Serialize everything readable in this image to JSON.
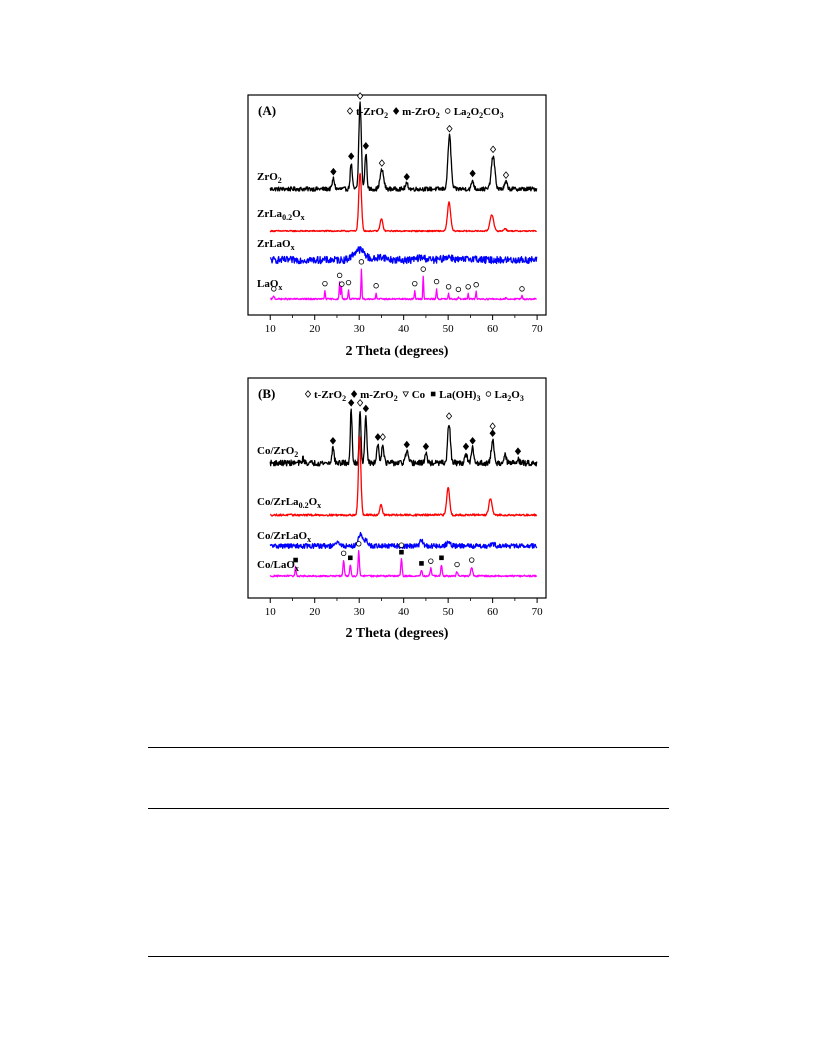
{
  "chart_data": [
    {
      "type": "line",
      "panel_label": "(A)",
      "xlabel": "2 Theta (degrees)",
      "ylabel": "",
      "xlim": [
        5,
        72
      ],
      "x_ticks": [
        "10",
        "20",
        "30",
        "40",
        "50",
        "60",
        "70"
      ],
      "grid": false,
      "legend_position": "top-right",
      "legend": [
        {
          "marker": "diamond-open",
          "text": "t-ZrO₂"
        },
        {
          "marker": "diamond-filled",
          "text": "m-ZrO₂"
        },
        {
          "marker": "circle-open",
          "text": "La₂O₂CO₃"
        }
      ],
      "series": [
        {
          "name": "ZrO₂",
          "color": "#000000",
          "noise": 0.025,
          "baseline": 0.0,
          "peaks": [
            [
              24.2,
              0.12,
              0.5
            ],
            [
              28.2,
              0.3,
              0.45
            ],
            [
              30.2,
              1.0,
              0.55
            ],
            [
              31.5,
              0.42,
              0.45
            ],
            [
              35.1,
              0.22,
              0.8
            ],
            [
              40.7,
              0.06,
              0.6
            ],
            [
              50.3,
              0.62,
              0.7
            ],
            [
              55.5,
              0.1,
              0.5
            ],
            [
              60.1,
              0.38,
              0.8
            ],
            [
              63.0,
              0.08,
              0.6
            ]
          ],
          "markers": [
            [
              24.2,
              "diamond-filled"
            ],
            [
              28.2,
              "diamond-filled"
            ],
            [
              30.2,
              "diamond-open"
            ],
            [
              31.5,
              "diamond-filled"
            ],
            [
              35.1,
              "diamond-open"
            ],
            [
              40.7,
              "diamond-filled"
            ],
            [
              50.3,
              "diamond-open"
            ],
            [
              55.5,
              "diamond-filled"
            ],
            [
              60.1,
              "diamond-open"
            ],
            [
              63.0,
              "diamond-open"
            ]
          ]
        },
        {
          "name": "ZrLa₀.₂Oₓ",
          "color": "#ff0000",
          "noise": 0.012,
          "baseline": 0.0,
          "peaks": [
            [
              30.2,
              1.05,
              0.6
            ],
            [
              35.0,
              0.22,
              0.6
            ],
            [
              50.2,
              0.52,
              0.7
            ],
            [
              59.8,
              0.3,
              0.8
            ],
            [
              62.8,
              0.05,
              0.5
            ]
          ],
          "markers": []
        },
        {
          "name": "ZrLaOₓ",
          "color": "#0000ff",
          "noise": 0.045,
          "baseline": 0.0,
          "peaks": [
            [
              30.0,
              0.13,
              2.5
            ],
            [
              35.0,
              0.04,
              2
            ],
            [
              44.0,
              0.03,
              2
            ],
            [
              50.0,
              0.04,
              2
            ],
            [
              55.5,
              0.02,
              2
            ]
          ],
          "markers": []
        },
        {
          "name": "LaOₓ",
          "color": "#ff00ff",
          "noise": 0.015,
          "baseline": 0.0,
          "peaks": [
            [
              10.8,
              0.06,
              0.3
            ],
            [
              22.3,
              0.16,
              0.2
            ],
            [
              25.6,
              0.32,
              0.2
            ],
            [
              26.0,
              0.25,
              0.2
            ],
            [
              27.6,
              0.18,
              0.2
            ],
            [
              30.5,
              0.58,
              0.2
            ],
            [
              33.8,
              0.12,
              0.2
            ],
            [
              42.5,
              0.16,
              0.2
            ],
            [
              44.4,
              0.44,
              0.2
            ],
            [
              47.4,
              0.2,
              0.2
            ],
            [
              50.1,
              0.1,
              0.2
            ],
            [
              52.3,
              0.05,
              0.2
            ],
            [
              54.5,
              0.1,
              0.2
            ],
            [
              56.3,
              0.14,
              0.2
            ],
            [
              63.0,
              0.03,
              0.2
            ],
            [
              66.6,
              0.06,
              0.2
            ]
          ],
          "markers": [
            [
              10.8,
              "circle-open"
            ],
            [
              22.3,
              "circle-open"
            ],
            [
              25.6,
              "circle-open"
            ],
            [
              26.1,
              "circle-open"
            ],
            [
              27.6,
              "circle-open"
            ],
            [
              30.5,
              "circle-open"
            ],
            [
              33.8,
              "circle-open"
            ],
            [
              42.5,
              "circle-open"
            ],
            [
              44.4,
              "circle-open"
            ],
            [
              47.4,
              "circle-open"
            ],
            [
              50.1,
              "circle-open"
            ],
            [
              52.3,
              "circle-open"
            ],
            [
              54.5,
              "circle-open"
            ],
            [
              56.3,
              "circle-open"
            ],
            [
              66.6,
              "circle-open"
            ]
          ]
        }
      ]
    },
    {
      "type": "line",
      "panel_label": "(B)",
      "xlabel": "2 Theta (degrees)",
      "ylabel": "",
      "xlim": [
        5,
        72
      ],
      "x_ticks": [
        "10",
        "20",
        "30",
        "40",
        "50",
        "60",
        "70"
      ],
      "grid": false,
      "legend_position": "top-right",
      "legend": [
        {
          "marker": "diamond-open",
          "text": "t-ZrO₂"
        },
        {
          "marker": "diamond-filled",
          "text": "m-ZrO₂"
        },
        {
          "marker": "triangle-down-open",
          "text": "Co"
        },
        {
          "marker": "square-filled",
          "text": "La(OH)₃"
        },
        {
          "marker": "circle-open",
          "text": "La₂O₃"
        }
      ],
      "series": [
        {
          "name": "Co/ZrO₂",
          "color": "#000000",
          "noise": 0.03,
          "baseline": 0.0,
          "peaks": [
            [
              17.4,
              0.05,
              0.4
            ],
            [
              24.1,
              0.16,
              0.5
            ],
            [
              28.2,
              0.56,
              0.4
            ],
            [
              30.2,
              0.56,
              0.4
            ],
            [
              31.5,
              0.5,
              0.45
            ],
            [
              34.2,
              0.2,
              0.5
            ],
            [
              35.3,
              0.2,
              0.5
            ],
            [
              40.7,
              0.12,
              0.6
            ],
            [
              45.0,
              0.1,
              0.5
            ],
            [
              50.2,
              0.42,
              0.6
            ],
            [
              54.0,
              0.1,
              0.5
            ],
            [
              55.5,
              0.16,
              0.5
            ],
            [
              60.0,
              0.24,
              0.6
            ],
            [
              62.8,
              0.08,
              0.5
            ],
            [
              65.7,
              0.05,
              0.5
            ]
          ],
          "markers": [
            [
              24.1,
              "diamond-filled"
            ],
            [
              28.2,
              "diamond-filled"
            ],
            [
              30.2,
              "diamond-open"
            ],
            [
              31.5,
              "diamond-filled"
            ],
            [
              34.2,
              "diamond-filled"
            ],
            [
              35.3,
              "diamond-open"
            ],
            [
              40.7,
              "diamond-filled"
            ],
            [
              45.0,
              "diamond-filled"
            ],
            [
              50.2,
              "diamond-open"
            ],
            [
              54.0,
              "diamond-filled"
            ],
            [
              55.5,
              "diamond-filled"
            ],
            [
              60.0,
              "diamond-filled"
            ],
            [
              60.0,
              "diamond-open"
            ],
            [
              65.7,
              "diamond-filled"
            ]
          ]
        },
        {
          "name": "Co/ZrLa₀.₂Oₓ",
          "color": "#ff0000",
          "noise": 0.012,
          "baseline": 0.0,
          "peaks": [
            [
              30.1,
              0.95,
              0.55
            ],
            [
              34.9,
              0.13,
              0.55
            ],
            [
              50.0,
              0.34,
              0.65
            ],
            [
              59.5,
              0.2,
              0.7
            ]
          ],
          "markers": []
        },
        {
          "name": "Co/ZrLaOₓ",
          "color": "#0000ff",
          "noise": 0.035,
          "baseline": 0.0,
          "peaks": [
            [
              25.2,
              0.05,
              0.8
            ],
            [
              30.2,
              0.17,
              0.9
            ],
            [
              31.5,
              0.08,
              0.8
            ],
            [
              44.0,
              0.07,
              0.8
            ],
            [
              50.0,
              0.04,
              1
            ],
            [
              60.0,
              0.03,
              1
            ]
          ],
          "markers": []
        },
        {
          "name": "Co/LaOₓ",
          "color": "#ff00ff",
          "noise": 0.015,
          "baseline": 0.0,
          "peaks": [
            [
              15.7,
              0.16,
              0.25
            ],
            [
              26.5,
              0.28,
              0.3
            ],
            [
              28.0,
              0.2,
              0.3
            ],
            [
              29.9,
              0.45,
              0.3
            ],
            [
              39.5,
              0.3,
              0.3
            ],
            [
              44.0,
              0.1,
              0.3
            ],
            [
              46.1,
              0.14,
              0.3
            ],
            [
              48.5,
              0.2,
              0.3
            ],
            [
              52.0,
              0.08,
              0.3
            ],
            [
              55.3,
              0.16,
              0.4
            ]
          ],
          "markers": [
            [
              15.7,
              "square-filled"
            ],
            [
              26.5,
              "circle-open"
            ],
            [
              28.0,
              "square-filled"
            ],
            [
              29.9,
              "circle-open"
            ],
            [
              39.5,
              "square-filled"
            ],
            [
              39.5,
              "circle-open"
            ],
            [
              44.0,
              "square-filled"
            ],
            [
              46.1,
              "circle-open"
            ],
            [
              48.5,
              "square-filled"
            ],
            [
              52.0,
              "circle-open"
            ],
            [
              55.3,
              "circle-open"
            ]
          ]
        }
      ]
    }
  ]
}
